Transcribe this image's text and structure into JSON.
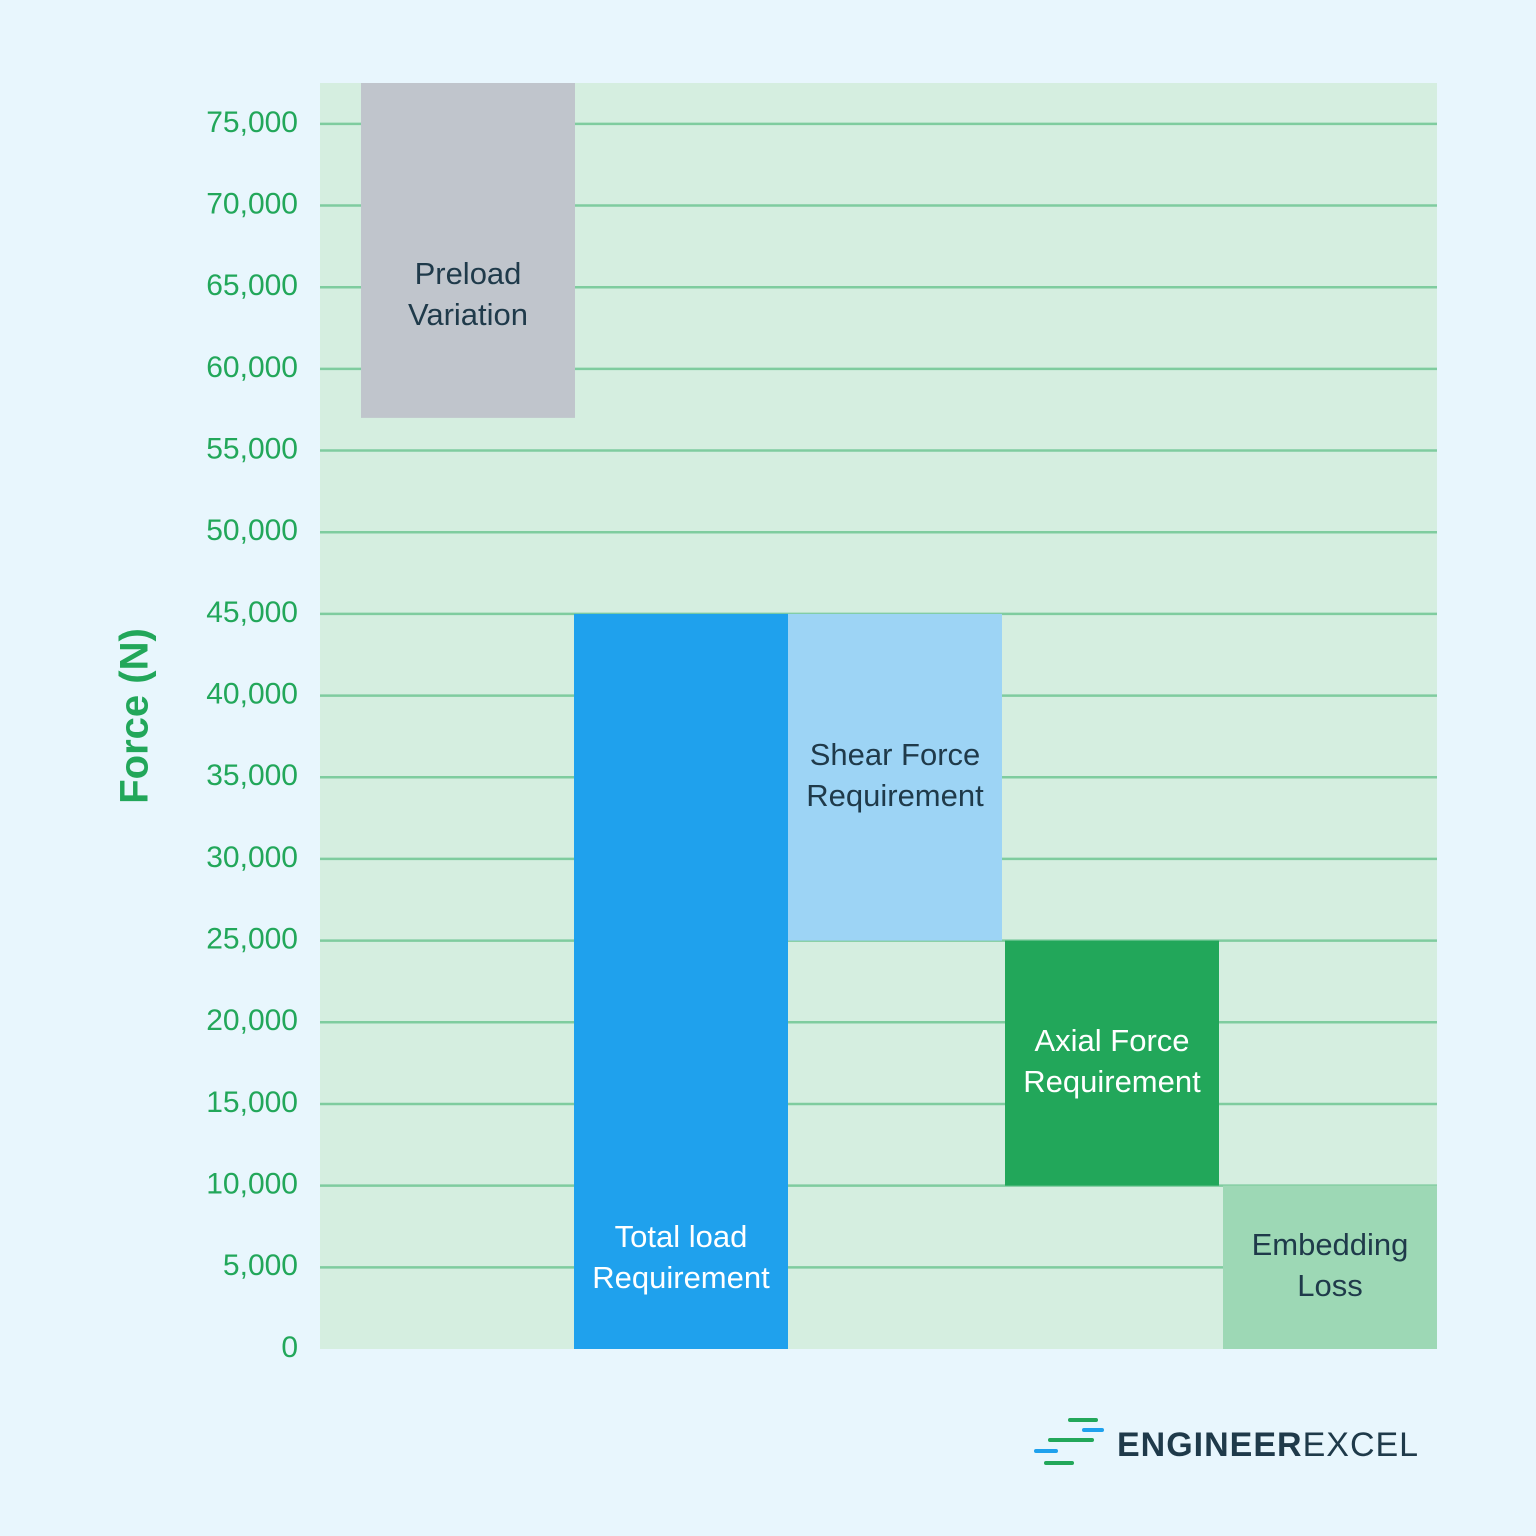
{
  "chart_data": {
    "type": "bar",
    "subtype": "waterfall",
    "ylabel": "Force (N)",
    "ylim": [
      0,
      77500
    ],
    "yticks": [
      0,
      5000,
      10000,
      15000,
      20000,
      25000,
      30000,
      35000,
      40000,
      45000,
      50000,
      55000,
      60000,
      65000,
      70000,
      75000
    ],
    "ytick_labels": [
      "0",
      "5,000",
      "10,000",
      "15,000",
      "20,000",
      "25,000",
      "30,000",
      "35,000",
      "40,000",
      "45,000",
      "50,000",
      "55,000",
      "60,000",
      "65,000",
      "70,000",
      "75,000"
    ],
    "grid": true,
    "bars": [
      {
        "label_lines": [
          "Preload",
          "Variation"
        ],
        "bottom": 57000,
        "top": 77500,
        "color": "#c0c5cc",
        "label_color": "#1f3a4a"
      },
      {
        "label_lines": [
          "Total load",
          "Requirement"
        ],
        "bottom": 0,
        "top": 45000,
        "color": "#1fa1ed",
        "label_color": "#ffffff"
      },
      {
        "label_lines": [
          "Shear Force",
          "Requirement"
        ],
        "bottom": 25000,
        "top": 45000,
        "color": "#9dd4f5",
        "label_color": "#1f3a4a"
      },
      {
        "label_lines": [
          "Axial Force",
          "Requirement"
        ],
        "bottom": 10000,
        "top": 25000,
        "color": "#22a75a",
        "label_color": "#ffffff"
      },
      {
        "label_lines": [
          "Embedding",
          "Loss"
        ],
        "bottom": 0,
        "top": 10000,
        "color": "#9dd8b5",
        "label_color": "#1f3a4a"
      }
    ],
    "colors": {
      "plot_bg": "#d5eee0",
      "grid": "#7fcc9f",
      "axis_text": "#22a75a"
    }
  },
  "logo": {
    "text_bold": "ENGINEER",
    "text_light": "EXCEL"
  }
}
